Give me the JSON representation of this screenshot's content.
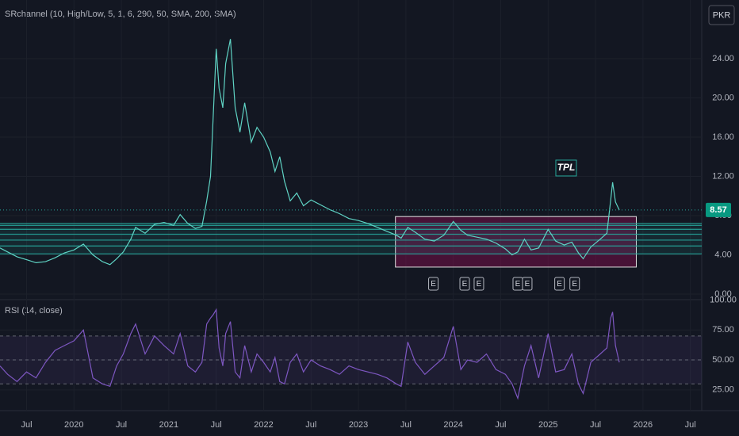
{
  "chart_data": [
    {
      "type": "line",
      "title": "SRchannel (10, High/Low, 5, 1, 6, 290, 50, SMA, 200, SMA)",
      "currency": "PKR",
      "color": "#5fd3c4",
      "x": [
        2019.22,
        2019.3,
        2019.4,
        2019.5,
        2019.6,
        2019.7,
        2019.8,
        2019.9,
        2020.0,
        2020.1,
        2020.2,
        2020.3,
        2020.38,
        2020.45,
        2020.52,
        2020.6,
        2020.65,
        2020.75,
        2020.85,
        2020.95,
        2021.05,
        2021.12,
        2021.2,
        2021.28,
        2021.35,
        2021.4,
        2021.44,
        2021.47,
        2021.5,
        2021.53,
        2021.57,
        2021.6,
        2021.65,
        2021.7,
        2021.75,
        2021.8,
        2021.87,
        2021.93,
        2022.0,
        2022.07,
        2022.12,
        2022.17,
        2022.22,
        2022.28,
        2022.35,
        2022.42,
        2022.5,
        2022.6,
        2022.7,
        2022.8,
        2022.9,
        2023.0,
        2023.1,
        2023.2,
        2023.3,
        2023.4,
        2023.45,
        2023.52,
        2023.6,
        2023.7,
        2023.8,
        2023.9,
        2024.0,
        2024.08,
        2024.15,
        2024.25,
        2024.35,
        2024.45,
        2024.55,
        2024.62,
        2024.68,
        2024.75,
        2024.82,
        2024.9,
        2025.0,
        2025.08,
        2025.17,
        2025.25,
        2025.32,
        2025.37,
        2025.45,
        2025.55,
        2025.62,
        2025.66,
        2025.68,
        2025.71,
        2025.75
      ],
      "values": [
        4.7,
        4.3,
        3.8,
        3.5,
        3.2,
        3.3,
        3.7,
        4.2,
        4.5,
        5.1,
        4.0,
        3.3,
        3.0,
        3.6,
        4.3,
        5.6,
        6.8,
        6.2,
        7.1,
        7.3,
        7.0,
        8.1,
        7.2,
        6.7,
        6.9,
        9.5,
        12.0,
        18.5,
        25.0,
        21.0,
        19.0,
        23.5,
        26.0,
        19.0,
        16.5,
        19.5,
        15.5,
        17.0,
        16.0,
        14.5,
        12.5,
        14.0,
        11.5,
        9.5,
        10.3,
        9.0,
        9.6,
        9.1,
        8.6,
        8.2,
        7.7,
        7.5,
        7.2,
        6.8,
        6.4,
        6.0,
        5.7,
        6.8,
        6.3,
        5.6,
        5.4,
        6.0,
        7.4,
        6.5,
        6.0,
        5.8,
        5.6,
        5.2,
        4.6,
        4.0,
        4.3,
        5.6,
        4.5,
        4.7,
        6.6,
        5.4,
        5.0,
        5.3,
        4.2,
        3.6,
        4.8,
        5.6,
        6.2,
        9.6,
        11.4,
        9.4,
        8.57
      ],
      "xlim": [
        2019.22,
        2026.62
      ],
      "xticks": [
        {
          "value": 2019.5,
          "label": "Jul"
        },
        2020,
        {
          "value": 2020.5,
          "label": "Jul"
        },
        2021,
        {
          "value": 2021.5,
          "label": "Jul"
        },
        2022,
        {
          "value": 2022.5,
          "label": "Jul"
        },
        2023,
        {
          "value": 2023.5,
          "label": "Jul"
        },
        2024,
        {
          "value": 2024.5,
          "label": "Jul"
        },
        2025,
        {
          "value": 2025.5,
          "label": "Jul"
        },
        2026,
        {
          "value": 2026.5,
          "label": "Jul"
        }
      ],
      "ylim": [
        -0.57,
        29.58
      ],
      "yticks": [
        {
          "value": 0,
          "label": "0.00"
        },
        {
          "value": 4,
          "label": "4.00"
        },
        {
          "value": 8,
          "label": "8.00"
        },
        {
          "value": 12,
          "label": "12.00"
        },
        {
          "value": 16,
          "label": "16.00"
        },
        {
          "value": 20,
          "label": "20.00"
        },
        {
          "value": 24,
          "label": "24.00"
        }
      ],
      "last_price": {
        "value": 8.57,
        "label": "8.57"
      },
      "sr_levels": [
        4.1,
        4.9,
        5.5,
        6.1,
        6.6,
        7.0,
        7.2
      ],
      "zone": {
        "xlim": [
          2023.39,
          2025.93
        ],
        "ylim": [
          2.75,
          7.9
        ]
      },
      "annotation": {
        "text": "TPL",
        "x": 2025.19,
        "y": 12.85
      },
      "earnings": {
        "label": "E",
        "x": [
          2023.79,
          2024.12,
          2024.27,
          2024.68,
          2024.78,
          2025.12,
          2025.28
        ]
      }
    },
    {
      "type": "line",
      "title": "RSI (14, close)",
      "color": "#7e57c2",
      "x": [
        2019.22,
        2019.3,
        2019.4,
        2019.5,
        2019.6,
        2019.7,
        2019.8,
        2019.9,
        2020.0,
        2020.1,
        2020.2,
        2020.3,
        2020.38,
        2020.45,
        2020.52,
        2020.6,
        2020.65,
        2020.75,
        2020.85,
        2020.95,
        2021.05,
        2021.12,
        2021.2,
        2021.28,
        2021.35,
        2021.4,
        2021.44,
        2021.47,
        2021.5,
        2021.53,
        2021.57,
        2021.6,
        2021.65,
        2021.7,
        2021.75,
        2021.8,
        2021.87,
        2021.93,
        2022.0,
        2022.07,
        2022.12,
        2022.17,
        2022.22,
        2022.28,
        2022.35,
        2022.42,
        2022.5,
        2022.6,
        2022.7,
        2022.8,
        2022.9,
        2023.0,
        2023.1,
        2023.2,
        2023.3,
        2023.4,
        2023.45,
        2023.52,
        2023.6,
        2023.7,
        2023.8,
        2023.9,
        2024.0,
        2024.08,
        2024.15,
        2024.25,
        2024.35,
        2024.45,
        2024.55,
        2024.62,
        2024.68,
        2024.75,
        2024.82,
        2024.9,
        2025.0,
        2025.08,
        2025.17,
        2025.25,
        2025.32,
        2025.37,
        2025.45,
        2025.55,
        2025.62,
        2025.66,
        2025.68,
        2025.71,
        2025.75
      ],
      "values": [
        45,
        38,
        32,
        40,
        35,
        48,
        58,
        62,
        66,
        75,
        35,
        30,
        28,
        45,
        55,
        72,
        80,
        55,
        70,
        62,
        55,
        72,
        45,
        40,
        48,
        80,
        85,
        88,
        92,
        60,
        45,
        72,
        82,
        40,
        35,
        62,
        40,
        55,
        48,
        40,
        52,
        32,
        30,
        48,
        55,
        40,
        50,
        45,
        42,
        38,
        45,
        42,
        40,
        38,
        35,
        30,
        28,
        65,
        48,
        38,
        45,
        52,
        78,
        42,
        50,
        48,
        55,
        42,
        38,
        30,
        18,
        45,
        62,
        35,
        72,
        40,
        42,
        55,
        30,
        22,
        48,
        55,
        60,
        85,
        90,
        62,
        48
      ],
      "ylim": [
        11,
        100
      ],
      "yticks": [
        {
          "value": 25,
          "label": "25.00"
        },
        {
          "value": 50,
          "label": "50.00"
        },
        {
          "value": 75,
          "label": "75.00"
        },
        {
          "value": 100,
          "label": "100.00"
        }
      ],
      "levels": [
        70,
        50,
        30
      ]
    }
  ]
}
